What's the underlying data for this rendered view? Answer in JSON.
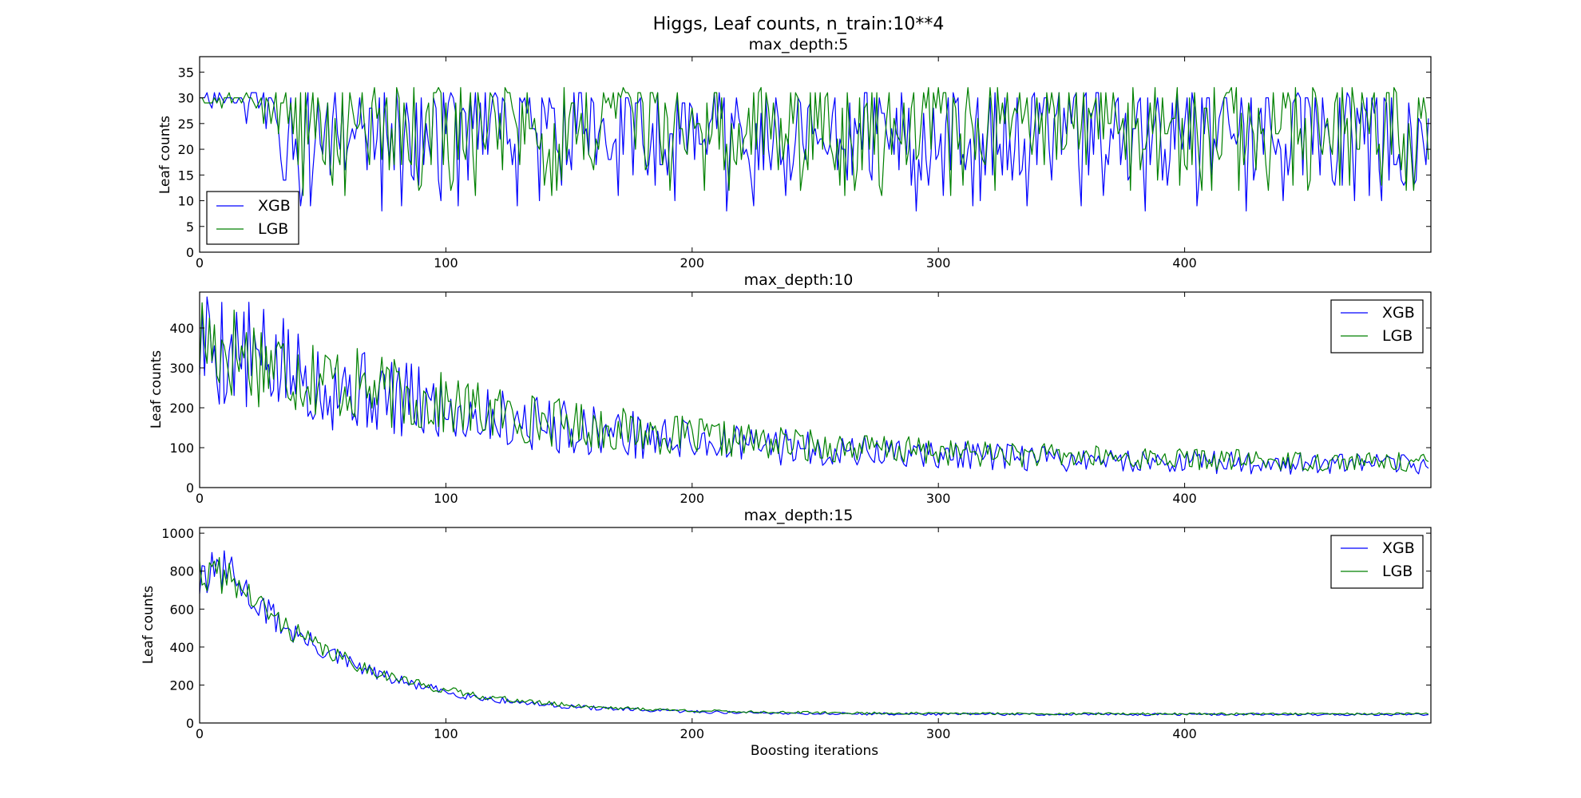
{
  "figure": {
    "suptitle": "Higgs, Leaf counts, n_train:10**4"
  },
  "colors": {
    "xgb": "#0000ff",
    "lgb": "#008000",
    "axis": "#000000"
  },
  "chart_data": [
    {
      "type": "line",
      "title": "max_depth:5",
      "xlabel": "",
      "ylabel": "Leaf counts",
      "xlim": [
        0,
        500
      ],
      "ylim": [
        0,
        38
      ],
      "xticks": [
        0,
        100,
        200,
        300,
        400
      ],
      "yticks": [
        0,
        5,
        10,
        15,
        20,
        25,
        30,
        35
      ],
      "legend": {
        "position": "lower-left",
        "entries": [
          "XGB",
          "LGB"
        ]
      },
      "grid": false,
      "series": [
        {
          "name": "XGB",
          "color": "#0000ff",
          "approximate_values": {
            "model": "band",
            "n": 500,
            "early_level": 31,
            "early_until": 30,
            "low": 13,
            "high": 31,
            "seed": 11
          }
        },
        {
          "name": "LGB",
          "color": "#008000",
          "approximate_values": {
            "model": "band",
            "n": 500,
            "early_level": 31,
            "early_until": 40,
            "low": 16,
            "high": 32,
            "seed": 23
          }
        }
      ]
    },
    {
      "type": "line",
      "title": "max_depth:10",
      "xlabel": "",
      "ylabel": "Leaf counts",
      "xlim": [
        0,
        500
      ],
      "ylim": [
        0,
        490
      ],
      "xticks": [
        0,
        100,
        200,
        300,
        400
      ],
      "yticks": [
        0,
        100,
        200,
        300,
        400
      ],
      "legend": {
        "position": "upper-right",
        "entries": [
          "XGB",
          "LGB"
        ]
      },
      "grid": false,
      "series": [
        {
          "name": "XGB",
          "color": "#0000ff",
          "approximate_values": {
            "model": "decay",
            "n": 500,
            "start": 370,
            "end": 50,
            "tau": 130,
            "noise": 0.45,
            "seed": 5
          }
        },
        {
          "name": "LGB",
          "color": "#008000",
          "approximate_values": {
            "model": "decay",
            "n": 500,
            "start": 375,
            "end": 55,
            "tau": 135,
            "noise": 0.38,
            "seed": 17
          }
        }
      ]
    },
    {
      "type": "line",
      "title": "max_depth:15",
      "xlabel": "Boosting iterations",
      "ylabel": "Leaf counts",
      "xlim": [
        0,
        500
      ],
      "ylim": [
        0,
        1030
      ],
      "xticks": [
        0,
        100,
        200,
        300,
        400
      ],
      "yticks": [
        0,
        200,
        400,
        600,
        800,
        1000
      ],
      "legend": {
        "position": "upper-right",
        "entries": [
          "XGB",
          "LGB"
        ]
      },
      "grid": false,
      "series": [
        {
          "name": "XGB",
          "color": "#0000ff",
          "approximate_values": {
            "model": "decay15",
            "n": 500,
            "plateau": 790,
            "end": 45,
            "tau": 48,
            "noise": 0.14,
            "seed": 31
          }
        },
        {
          "name": "LGB",
          "color": "#008000",
          "approximate_values": {
            "model": "decay15",
            "n": 500,
            "plateau": 780,
            "end": 48,
            "tau": 50,
            "noise": 0.12,
            "seed": 41
          }
        }
      ]
    }
  ]
}
